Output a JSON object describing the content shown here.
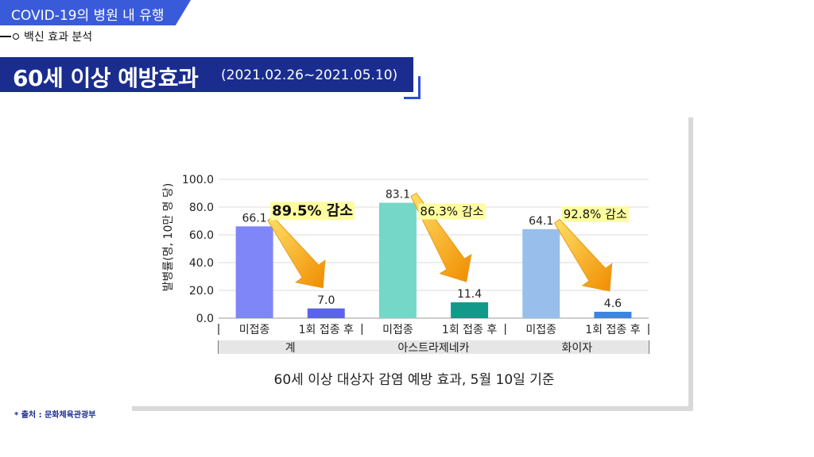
{
  "header": {
    "tag": "COVID-19의 병원 내 유행",
    "subtitle": "백신 효과 분석",
    "title": "60세 이상 예방효과",
    "period": "(2021.02.26~2021.05.10)"
  },
  "source": "* 출처 : 문화체육관광부",
  "chart_data": {
    "type": "bar",
    "title": "",
    "caption": "60세 이상 대상자 감염 예방 효과, 5월 10일 기준",
    "ylabel": "발병률(명, 10만 명 당)",
    "xlabel": "",
    "ylim": [
      0,
      100
    ],
    "yticks": [
      "0.0",
      "20.0",
      "40.0",
      "60.0",
      "80.0",
      "100.0"
    ],
    "grid": true,
    "groups": [
      {
        "name": "계",
        "categories": [
          "미접종",
          "1회 접종 후"
        ],
        "values": [
          66.1,
          7.0
        ],
        "labels": [
          "66.1",
          "7.0"
        ],
        "colors": [
          "#7f86f7",
          "#5b64e6"
        ],
        "reduction": "89.5% 감소"
      },
      {
        "name": "아스트라제네카",
        "categories": [
          "미접종",
          "1회 접종 후"
        ],
        "values": [
          83.1,
          11.4
        ],
        "labels": [
          "83.1",
          "11.4"
        ],
        "colors": [
          "#74d7c8",
          "#12998a"
        ],
        "reduction": "86.3% 감소"
      },
      {
        "name": "화이자",
        "categories": [
          "미접종",
          "1회 접종 후"
        ],
        "values": [
          64.1,
          4.6
        ],
        "labels": [
          "64.1",
          "4.6"
        ],
        "colors": [
          "#98bfec",
          "#3f84dc"
        ],
        "reduction": "92.8% 감소"
      }
    ],
    "colors": {
      "highlight": "#fdfda0",
      "arrow_light": "#ffd84a",
      "arrow_dark": "#f08c00"
    }
  }
}
